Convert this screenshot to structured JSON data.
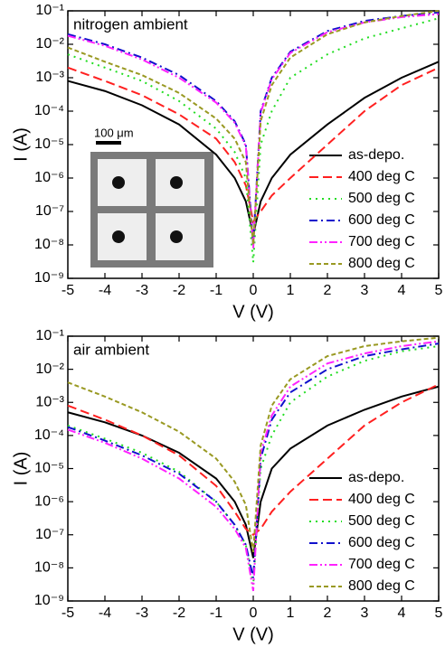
{
  "chart_data": [
    {
      "type": "line",
      "title": "nitrogen ambient",
      "x_label": "V (V)",
      "y_label": "I (A)",
      "log_y": true,
      "legend": "lower right",
      "inset_label": "100 μm",
      "x": [
        -5,
        -4,
        -3,
        -2,
        -1,
        -0.5,
        -0.2,
        0,
        0.2,
        0.5,
        1,
        2,
        3,
        4,
        5
      ],
      "xlim": [
        -5,
        5
      ],
      "xticks": [
        -5,
        -4,
        -3,
        -2,
        -1,
        0,
        1,
        2,
        3,
        4,
        5
      ],
      "ylim": [
        1e-09,
        0.1
      ],
      "yticks": [
        {
          "value": 1e-09,
          "label": "10⁻⁹"
        },
        {
          "value": 1e-08,
          "label": "10⁻⁸"
        },
        {
          "value": 1e-07,
          "label": "10⁻⁷"
        },
        {
          "value": 1e-06,
          "label": "10⁻⁶"
        },
        {
          "value": 1e-05,
          "label": "10⁻⁵"
        },
        {
          "value": 0.0001,
          "label": "10⁻⁴"
        },
        {
          "value": 0.001,
          "label": "10⁻³"
        },
        {
          "value": 0.01,
          "label": "10⁻²"
        },
        {
          "value": 0.1,
          "label": "10⁻¹"
        }
      ],
      "series": [
        {
          "name": "as-depo.",
          "color": "#000000",
          "dash": "solid",
          "values": [
            0.0008,
            0.0004,
            0.00015,
            4e-05,
            5e-06,
            1e-06,
            2e-07,
            2e-08,
            2e-07,
            1e-06,
            5e-06,
            4e-05,
            0.00025,
            0.001,
            0.003
          ]
        },
        {
          "name": "400 deg C",
          "color": "#ff2020",
          "dash": "dashed",
          "values": [
            0.002,
            0.0008,
            0.0003,
            8e-05,
            1.5e-05,
            3e-06,
            6e-07,
            5e-08,
            1e-07,
            3e-07,
            1e-06,
            1e-05,
            0.0001,
            0.0006,
            0.002
          ]
        },
        {
          "name": "500 deg C",
          "color": "#22dd22",
          "dash": "dotted",
          "values": [
            0.005,
            0.002,
            0.0008,
            0.0002,
            3e-05,
            6e-06,
            1e-06,
            3e-09,
            1e-05,
            0.0001,
            0.001,
            0.005,
            0.015,
            0.03,
            0.06
          ]
        },
        {
          "name": "600 deg C",
          "color": "#1010cc",
          "dash": "dashdot",
          "values": [
            0.02,
            0.01,
            0.004,
            0.0012,
            0.0002,
            5e-05,
            1e-05,
            1e-08,
            0.0001,
            0.001,
            0.006,
            0.025,
            0.05,
            0.07,
            0.09
          ]
        },
        {
          "name": "700 deg C",
          "color": "#ff22ff",
          "dash": "dashdotdot",
          "values": [
            0.018,
            0.009,
            0.0035,
            0.001,
            0.00018,
            4.5e-05,
            9e-06,
            8e-09,
            9e-05,
            0.0009,
            0.0055,
            0.023,
            0.045,
            0.065,
            0.08
          ]
        },
        {
          "name": "800 deg C",
          "color": "#999922",
          "dash": "shortdash",
          "values": [
            0.008,
            0.003,
            0.0012,
            0.00035,
            6e-05,
            1.5e-05,
            3e-06,
            1e-08,
            5e-05,
            0.0006,
            0.004,
            0.02,
            0.045,
            0.07,
            0.1
          ]
        }
      ]
    },
    {
      "type": "line",
      "title": "air ambient",
      "x_label": "V (V)",
      "y_label": "I (A)",
      "log_y": true,
      "legend": "lower right",
      "x": [
        -5,
        -4,
        -3,
        -2,
        -1,
        -0.5,
        -0.2,
        0,
        0.2,
        0.5,
        1,
        2,
        3,
        4,
        5
      ],
      "xlim": [
        -5,
        5
      ],
      "xticks": [
        -5,
        -4,
        -3,
        -2,
        -1,
        0,
        1,
        2,
        3,
        4,
        5
      ],
      "ylim": [
        1e-09,
        0.1
      ],
      "yticks": [
        {
          "value": 1e-09,
          "label": "10⁻⁹"
        },
        {
          "value": 1e-08,
          "label": "10⁻⁸"
        },
        {
          "value": 1e-07,
          "label": "10⁻⁷"
        },
        {
          "value": 1e-06,
          "label": "10⁻⁶"
        },
        {
          "value": 1e-05,
          "label": "10⁻⁵"
        },
        {
          "value": 0.0001,
          "label": "10⁻⁴"
        },
        {
          "value": 0.001,
          "label": "10⁻³"
        },
        {
          "value": 0.01,
          "label": "10⁻²"
        },
        {
          "value": 0.1,
          "label": "10⁻¹"
        }
      ],
      "series": [
        {
          "name": "as-depo.",
          "color": "#000000",
          "dash": "solid",
          "values": [
            0.0005,
            0.00025,
            0.0001,
            3e-05,
            5e-06,
            1e-06,
            2e-07,
            2e-08,
            1e-06,
            1e-05,
            4e-05,
            0.0002,
            0.0006,
            0.0015,
            0.003
          ]
        },
        {
          "name": "400 deg C",
          "color": "#ff2020",
          "dash": "dashed",
          "values": [
            0.0008,
            0.0003,
            0.0001,
            2.5e-05,
            3e-06,
            5e-07,
            1.5e-07,
            1e-07,
            1.5e-07,
            5e-07,
            2e-06,
            2e-05,
            0.0002,
            0.001,
            0.0035
          ]
        },
        {
          "name": "500 deg C",
          "color": "#22dd22",
          "dash": "dotted",
          "values": [
            0.0002,
            8e-05,
            3e-05,
            8e-06,
            1e-06,
            2e-07,
            5e-08,
            3e-09,
            1e-05,
            0.0001,
            0.001,
            0.006,
            0.018,
            0.035,
            0.05
          ]
        },
        {
          "name": "600 deg C",
          "color": "#1010cc",
          "dash": "dashdot",
          "values": [
            0.00018,
            7e-05,
            2.5e-05,
            7e-06,
            1e-06,
            2e-07,
            5e-08,
            5e-09,
            2e-05,
            0.0003,
            0.002,
            0.01,
            0.025,
            0.04,
            0.06
          ]
        },
        {
          "name": "700 deg C",
          "color": "#ff22ff",
          "dash": "dashdotdot",
          "values": [
            0.00015,
            6e-05,
            2e-05,
            5e-06,
            7e-07,
            1.5e-07,
            4e-08,
            2e-09,
            3e-05,
            0.0004,
            0.003,
            0.015,
            0.03,
            0.05,
            0.07
          ]
        },
        {
          "name": "800 deg C",
          "color": "#999922",
          "dash": "shortdash",
          "values": [
            0.004,
            0.0015,
            0.0005,
            0.00013,
            2e-05,
            4e-06,
            8e-07,
            3e-08,
            5e-05,
            0.0008,
            0.005,
            0.025,
            0.05,
            0.07,
            0.09
          ]
        }
      ]
    }
  ]
}
